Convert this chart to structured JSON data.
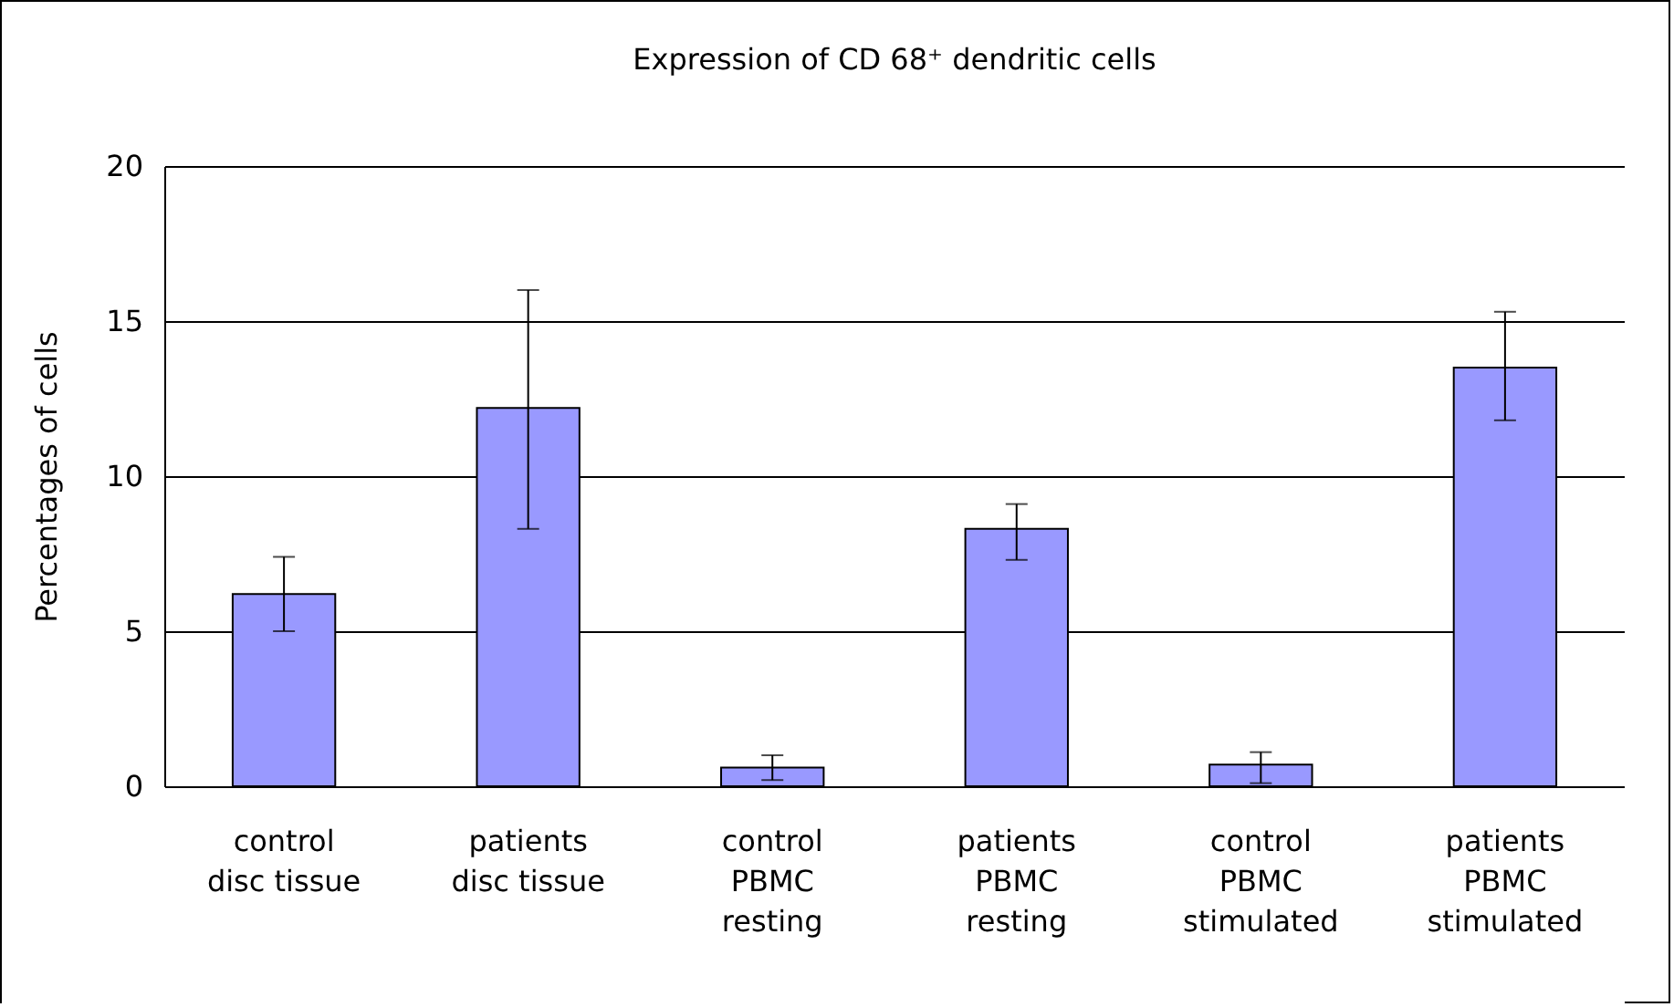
{
  "chart_data": {
    "type": "bar",
    "title": "Expression of CD 68⁺ dendritic cells",
    "ylabel": "Percentages of cells",
    "categories": [
      "control\ndisc tissue",
      "patients\ndisc tissue",
      "control\nPBMC\nresting",
      "patients\nPBMC\nresting",
      "control\nPBMC\nstimulated",
      "patients\nPBMC\nstimulated"
    ],
    "values": [
      6.2,
      12.2,
      0.6,
      8.3,
      0.7,
      13.5
    ],
    "errors": [
      [
        5.0,
        7.4
      ],
      [
        8.3,
        16.0
      ],
      [
        0.2,
        1.0
      ],
      [
        7.3,
        9.1
      ],
      [
        0.1,
        1.1
      ],
      [
        11.8,
        15.3
      ]
    ],
    "color": "#9999ff",
    "ylim": [
      0,
      20
    ],
    "yticks": [
      0,
      5,
      10,
      15,
      20
    ],
    "grid": "y"
  }
}
